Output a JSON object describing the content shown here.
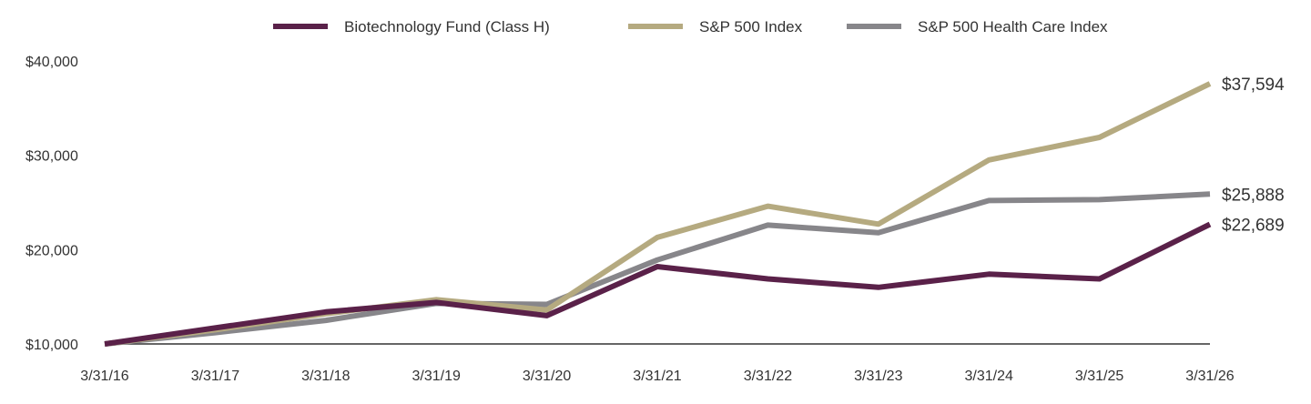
{
  "chart_data": {
    "type": "line",
    "title": "",
    "xlabel": "",
    "ylabel": "",
    "categories": [
      "3/31/16",
      "3/31/17",
      "3/31/18",
      "3/31/19",
      "3/31/20",
      "3/31/21",
      "3/31/22",
      "3/31/23",
      "3/31/24",
      "3/31/25",
      "3/31/26"
    ],
    "ylim": [
      10000,
      40000
    ],
    "yticks": [
      10000,
      20000,
      30000,
      40000
    ],
    "ytick_labels": [
      "$10,000",
      "$20,000",
      "$30,000",
      "$40,000"
    ],
    "grid": false,
    "legend_position": "top",
    "series": [
      {
        "name": "Biotechnology Fund (Class H)",
        "color": "#5a2149",
        "values": [
          10000,
          11700,
          13400,
          14400,
          13000,
          18200,
          16900,
          16000,
          17400,
          16900,
          22689
        ],
        "end_label": "$22,689"
      },
      {
        "name": "S&P 500 Index",
        "color": "#b5aa80",
        "values": [
          10000,
          11500,
          13200,
          14700,
          13600,
          21300,
          24600,
          22700,
          29500,
          31900,
          37594
        ],
        "end_label": "$37,594"
      },
      {
        "name": "S&P 500 Health Care Index",
        "color": "#87868a",
        "values": [
          10000,
          11200,
          12500,
          14300,
          14200,
          18900,
          22600,
          21800,
          25200,
          25300,
          25888
        ],
        "end_label": "$25,888"
      }
    ]
  }
}
